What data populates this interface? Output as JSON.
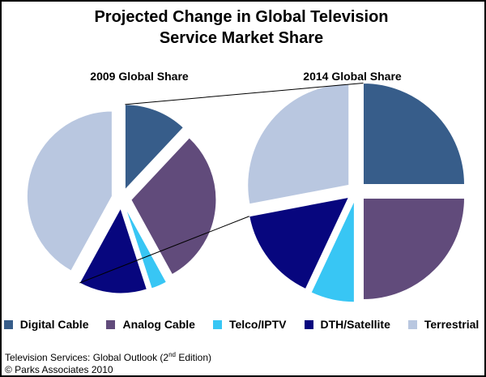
{
  "chart_data": {
    "type": "pie",
    "title_line1": "Projected Change in Global Television",
    "title_line2": "Service Market Share",
    "categories": [
      "Digital Cable",
      "Analog Cable",
      "Telco/IPTV",
      "DTH/Satellite",
      "Terrestrial"
    ],
    "colors": [
      "#375d8a",
      "#614b7b",
      "#38c6f4",
      "#07067e",
      "#b9c7e0"
    ],
    "pies": [
      {
        "name": "2009 Global Share",
        "values": [
          12,
          30,
          3,
          13,
          42
        ]
      },
      {
        "name": "2014 Global Share",
        "values": [
          25,
          25,
          7,
          15,
          28
        ]
      }
    ],
    "legend_position": "bottom"
  },
  "source": {
    "line1_pre": "Television Services: Global Outlook (2",
    "line1_sup": "nd",
    "line1_post": " Edition)",
    "line2": "© Parks Associates 2010"
  }
}
